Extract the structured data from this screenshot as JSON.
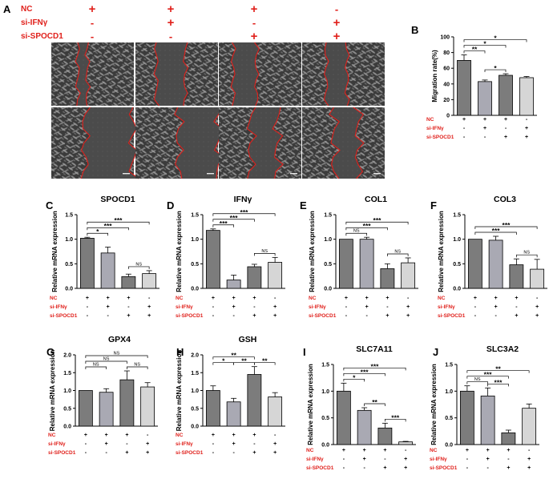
{
  "panel_a": {
    "letter": "A",
    "rows": [
      {
        "label": "NC",
        "signs": [
          "+",
          "+",
          "+",
          "-"
        ]
      },
      {
        "label": "si-IFNγ",
        "signs": [
          "-",
          "+",
          "-",
          "+"
        ]
      },
      {
        "label": "si-SPOCD1",
        "signs": [
          "-",
          "-",
          "+",
          "+"
        ]
      }
    ]
  },
  "colors": {
    "accent_red": "#e0201b",
    "bar_dark": "#7c7c7c",
    "bar_mid": "#a9a9b3",
    "bar_light": "#d6d6d6"
  },
  "condition_labels": [
    "NC",
    "si-IFNγ",
    "si-SPOCD1"
  ],
  "condition_signs": [
    [
      "+",
      "+",
      "+",
      "-"
    ],
    [
      "-",
      "+",
      "-",
      "+"
    ],
    [
      "-",
      "-",
      "+",
      "+"
    ]
  ],
  "chart_data": [
    {
      "id": "B",
      "letter": "B",
      "type": "bar",
      "title": "",
      "ylabel": "Migration rate(%)",
      "ylim": [
        0,
        100
      ],
      "yticks": [
        "0",
        "20",
        "40",
        "60",
        "80",
        "100"
      ],
      "values": [
        70,
        43,
        51,
        48
      ],
      "errors": [
        7,
        2,
        2,
        1.5
      ],
      "brackets": [
        {
          "from": 0,
          "to": 1,
          "label": "**"
        },
        {
          "from": 0,
          "to": 2,
          "label": "*"
        },
        {
          "from": 0,
          "to": 3,
          "label": "*"
        },
        {
          "from": 1,
          "to": 2,
          "label": "*"
        }
      ]
    },
    {
      "id": "C",
      "letter": "C",
      "type": "bar",
      "title": "SPOCD1",
      "ylabel": "Relative mRNA expression",
      "ylim": [
        0,
        1.5
      ],
      "yticks": [
        "0.0",
        "0.5",
        "1.0",
        "1.5"
      ],
      "values": [
        1.02,
        0.72,
        0.24,
        0.3
      ],
      "errors": [
        0.02,
        0.12,
        0.05,
        0.06
      ],
      "brackets": [
        {
          "from": 0,
          "to": 1,
          "label": "*"
        },
        {
          "from": 0,
          "to": 2,
          "label": "***"
        },
        {
          "from": 0,
          "to": 3,
          "label": "***"
        },
        {
          "from": 2,
          "to": 3,
          "label": "NS"
        }
      ]
    },
    {
      "id": "D",
      "letter": "D",
      "type": "bar",
      "title": "IFNγ",
      "ylabel": "Relative mRNA expression",
      "ylim": [
        0,
        1.5
      ],
      "yticks": [
        "0.0",
        "0.5",
        "1.0",
        "1.5"
      ],
      "values": [
        1.18,
        0.17,
        0.44,
        0.53
      ],
      "errors": [
        0.03,
        0.1,
        0.05,
        0.1
      ],
      "brackets": [
        {
          "from": 0,
          "to": 1,
          "label": "***"
        },
        {
          "from": 0,
          "to": 2,
          "label": "***"
        },
        {
          "from": 0,
          "to": 3,
          "label": "***"
        },
        {
          "from": 2,
          "to": 3,
          "label": "NS"
        }
      ]
    },
    {
      "id": "E",
      "letter": "E",
      "type": "bar",
      "title": "COL1",
      "ylabel": "Relative mRNA expression",
      "ylim": [
        0,
        1.5
      ],
      "yticks": [
        "0.0",
        "0.5",
        "1.0",
        "1.5"
      ],
      "values": [
        1.0,
        1.0,
        0.4,
        0.52
      ],
      "errors": [
        0.0,
        0.04,
        0.1,
        0.1
      ],
      "brackets": [
        {
          "from": 0,
          "to": 1,
          "label": "NS"
        },
        {
          "from": 0,
          "to": 2,
          "label": "***"
        },
        {
          "from": 0,
          "to": 3,
          "label": "***"
        },
        {
          "from": 2,
          "to": 3,
          "label": "NS"
        }
      ]
    },
    {
      "id": "F",
      "letter": "F",
      "type": "bar",
      "title": "COL3",
      "ylabel": "Relative mRNA expression",
      "ylim": [
        0,
        1.5
      ],
      "yticks": [
        "0.0",
        "0.5",
        "1.0",
        "1.5"
      ],
      "values": [
        1.0,
        0.98,
        0.48,
        0.39
      ],
      "errors": [
        0.0,
        0.08,
        0.12,
        0.2
      ],
      "brackets": [
        {
          "from": 0,
          "to": 2,
          "label": "***"
        },
        {
          "from": 0,
          "to": 3,
          "label": "***"
        },
        {
          "from": 2,
          "to": 3,
          "label": "NS"
        }
      ]
    },
    {
      "id": "G",
      "letter": "G",
      "type": "bar",
      "title": "GPX4",
      "ylabel": "Relative mRNA expression",
      "ylim": [
        0,
        2.0
      ],
      "yticks": [
        "0.0",
        "0.5",
        "1.0",
        "1.5",
        "2.0"
      ],
      "values": [
        1.0,
        0.95,
        1.3,
        1.1
      ],
      "errors": [
        0.0,
        0.1,
        0.25,
        0.12
      ],
      "brackets": [
        {
          "from": 0,
          "to": 1,
          "label": "NS"
        },
        {
          "from": 0,
          "to": 2,
          "label": "NS"
        },
        {
          "from": 0,
          "to": 3,
          "label": "NS"
        },
        {
          "from": 2,
          "to": 3,
          "label": "NS"
        }
      ]
    },
    {
      "id": "H",
      "letter": "H",
      "type": "bar",
      "title": "GSH",
      "ylabel": "Relative mRNA expression",
      "ylim": [
        0,
        2.0
      ],
      "yticks": [
        "0.0",
        "0.5",
        "1.0",
        "1.5",
        "2.0"
      ],
      "values": [
        1.0,
        0.68,
        1.45,
        0.82
      ],
      "errors": [
        0.13,
        0.1,
        0.22,
        0.12
      ],
      "brackets": [
        {
          "from": 0,
          "to": 1,
          "label": "*"
        },
        {
          "from": 0,
          "to": 2,
          "label": "**"
        },
        {
          "from": 1,
          "to": 2,
          "label": "**"
        },
        {
          "from": 2,
          "to": 3,
          "label": "**"
        }
      ]
    },
    {
      "id": "I",
      "letter": "I",
      "type": "bar",
      "title": "SLC7A11",
      "ylabel": "Relative mRNA expression",
      "ylim": [
        0,
        1.5
      ],
      "yticks": [
        "0.0",
        "0.5",
        "1.0",
        "1.5"
      ],
      "values": [
        1.0,
        0.64,
        0.31,
        0.05
      ],
      "errors": [
        0.15,
        0.05,
        0.09,
        0.01
      ],
      "brackets": [
        {
          "from": 0,
          "to": 1,
          "label": "*"
        },
        {
          "from": 0,
          "to": 2,
          "label": "***"
        },
        {
          "from": 0,
          "to": 3,
          "label": "***"
        },
        {
          "from": 1,
          "to": 2,
          "label": "**"
        },
        {
          "from": 2,
          "to": 3,
          "label": "***"
        }
      ]
    },
    {
      "id": "J",
      "letter": "J",
      "type": "bar",
      "title": "SLC3A2",
      "ylabel": "Relative mRNA expression",
      "ylim": [
        0,
        1.5
      ],
      "yticks": [
        "0.0",
        "0.5",
        "1.0",
        "1.5"
      ],
      "values": [
        1.0,
        0.91,
        0.22,
        0.68
      ],
      "errors": [
        0.1,
        0.15,
        0.05,
        0.08
      ],
      "brackets": [
        {
          "from": 0,
          "to": 1,
          "label": "NS"
        },
        {
          "from": 0,
          "to": 2,
          "label": "***"
        },
        {
          "from": 0,
          "to": 3,
          "label": "**"
        },
        {
          "from": 1,
          "to": 2,
          "label": "***"
        }
      ]
    }
  ]
}
